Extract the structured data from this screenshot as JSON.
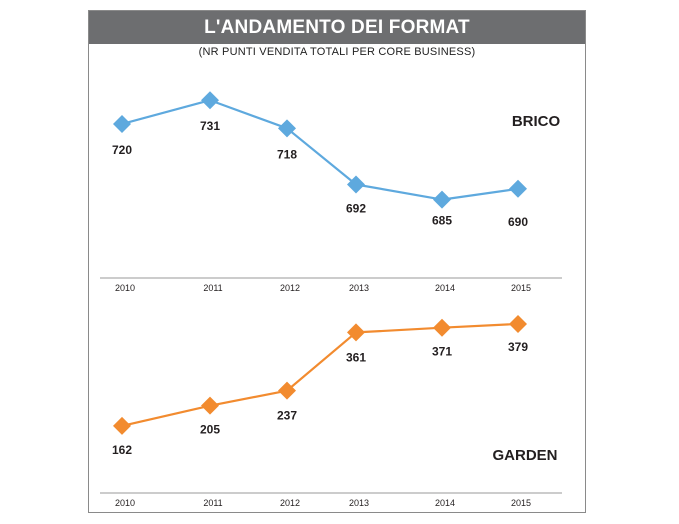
{
  "header": {
    "title": "L'ANDAMENTO DEI FORMAT",
    "subtitle": "(NR PUNTI VENDITA TOTALI PER CORE BUSINESS)"
  },
  "chart_data": [
    {
      "type": "line",
      "name": "BRICO",
      "color": "#5ea9de",
      "categories": [
        "2010",
        "2011",
        "2012",
        "2013",
        "2014",
        "2015"
      ],
      "values": [
        720,
        731,
        718,
        692,
        685,
        690
      ],
      "ylim": [
        670,
        745
      ]
    },
    {
      "type": "line",
      "name": "GARDEN",
      "color": "#f28b2f",
      "categories": [
        "2010",
        "2011",
        "2012",
        "2013",
        "2014",
        "2015"
      ],
      "values": [
        162,
        205,
        237,
        361,
        371,
        379
      ],
      "ylim": [
        100,
        430
      ]
    }
  ]
}
